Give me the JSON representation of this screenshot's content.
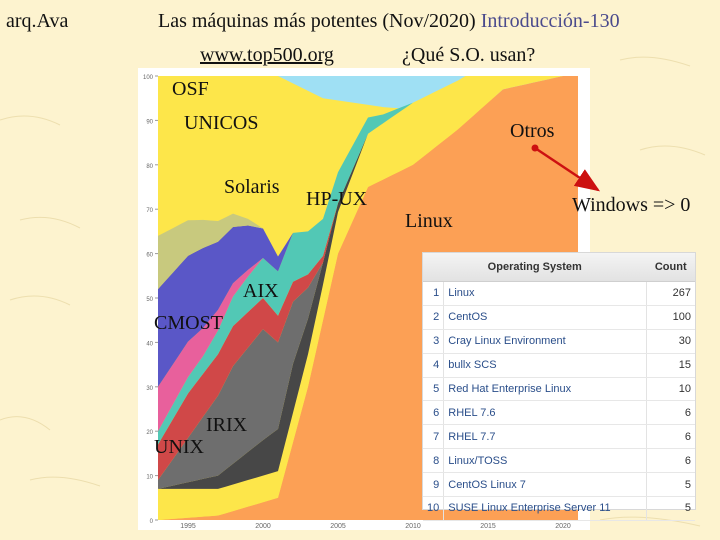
{
  "slide": {
    "tag": "arq.Ava",
    "title": "Las máquinas más potentes (Nov/2020)",
    "subtitle": "Introducción-130",
    "link": "www.top500.org",
    "question": "¿Qué S.O. usan?"
  },
  "labels": {
    "osf": "OSF",
    "unicos": "UNICOS",
    "solaris": "Solaris",
    "hpux": "HP-UX",
    "otros": "Otros",
    "linux": "Linux",
    "windows": "Windows => 0",
    "aix": "AIX",
    "cmost": "CMOST",
    "irix": "IRIX",
    "unix": "UNIX"
  },
  "colors": {
    "linux": "#fca055",
    "yellow": "#fde64a",
    "sky": "#9fe0f4",
    "gray": "#6e6e6e",
    "darkgray": "#474747",
    "khaki": "#c8c97e",
    "pink": "#e8609c",
    "violet": "#5a57c7",
    "teal": "#52c8b5",
    "red": "#d04848",
    "arrow": "#cc1111"
  },
  "chart_data": {
    "type": "area",
    "x_ticks": [
      "1995",
      "2000",
      "2005",
      "2010",
      "2015",
      "2020"
    ],
    "y_ticks": [
      "0",
      "10",
      "20",
      "30",
      "40",
      "50",
      "60",
      "70",
      "80",
      "90",
      "100"
    ],
    "ylim": [
      0,
      100
    ],
    "series": [
      {
        "name": "Linux",
        "x": [
          1993,
          1997,
          1999,
          2001,
          2003,
          2005,
          2007,
          2010,
          2013,
          2016,
          2020
        ],
        "values": [
          0,
          1,
          3,
          5,
          30,
          60,
          75,
          80,
          88,
          97,
          100
        ]
      },
      {
        "name": "Otros",
        "x": [
          1993,
          1997,
          2001,
          2004,
          2007,
          2010,
          2014,
          2020
        ],
        "values": [
          7,
          6,
          6,
          8,
          12,
          14,
          10,
          0
        ]
      },
      {
        "name": "HP-UX",
        "x": [
          1993,
          1997,
          2000,
          2002,
          2004,
          2005,
          2007
        ],
        "values": [
          0,
          3,
          8,
          11,
          5,
          2,
          0
        ]
      },
      {
        "name": "Solaris",
        "x": [
          1993,
          1995,
          1998,
          2000,
          2002,
          2004
        ],
        "values": [
          2,
          10,
          22,
          25,
          14,
          0
        ]
      },
      {
        "name": "UNICOS",
        "x": [
          1993,
          1995,
          1998,
          2001,
          2003,
          2005
        ],
        "values": [
          8,
          10,
          9,
          6,
          3,
          0
        ]
      },
      {
        "name": "AIX",
        "x": [
          1993,
          1996,
          1999,
          2002,
          2005,
          2008,
          2010
        ],
        "values": [
          3,
          4,
          8,
          11,
          7,
          2,
          0
        ]
      },
      {
        "name": "CMOST",
        "x": [
          1993,
          1995,
          1998,
          2000
        ],
        "values": [
          10,
          8,
          3,
          0
        ]
      },
      {
        "name": "IRIX",
        "x": [
          1993,
          1996,
          1999,
          2002
        ],
        "values": [
          22,
          18,
          10,
          0
        ]
      },
      {
        "name": "UNIX",
        "x": [
          1993,
          1995,
          1998,
          2000
        ],
        "values": [
          12,
          8,
          3,
          0
        ]
      }
    ]
  },
  "table": {
    "headers": [
      "Operating System",
      "Count"
    ],
    "rows": [
      {
        "rank": "1",
        "name": "Linux",
        "count": "267"
      },
      {
        "rank": "2",
        "name": "CentOS",
        "count": "100"
      },
      {
        "rank": "3",
        "name": "Cray Linux Environment",
        "count": "30"
      },
      {
        "rank": "4",
        "name": "bullx SCS",
        "count": "15"
      },
      {
        "rank": "5",
        "name": "Red Hat Enterprise Linux",
        "count": "10"
      },
      {
        "rank": "6",
        "name": "RHEL 7.6",
        "count": "6"
      },
      {
        "rank": "7",
        "name": "RHEL 7.7",
        "count": "6"
      },
      {
        "rank": "8",
        "name": "Linux/TOSS",
        "count": "6"
      },
      {
        "rank": "9",
        "name": "CentOS Linux 7",
        "count": "5"
      },
      {
        "rank": "10",
        "name": "SUSE Linux Enterprise Server 11",
        "count": "5"
      }
    ]
  }
}
